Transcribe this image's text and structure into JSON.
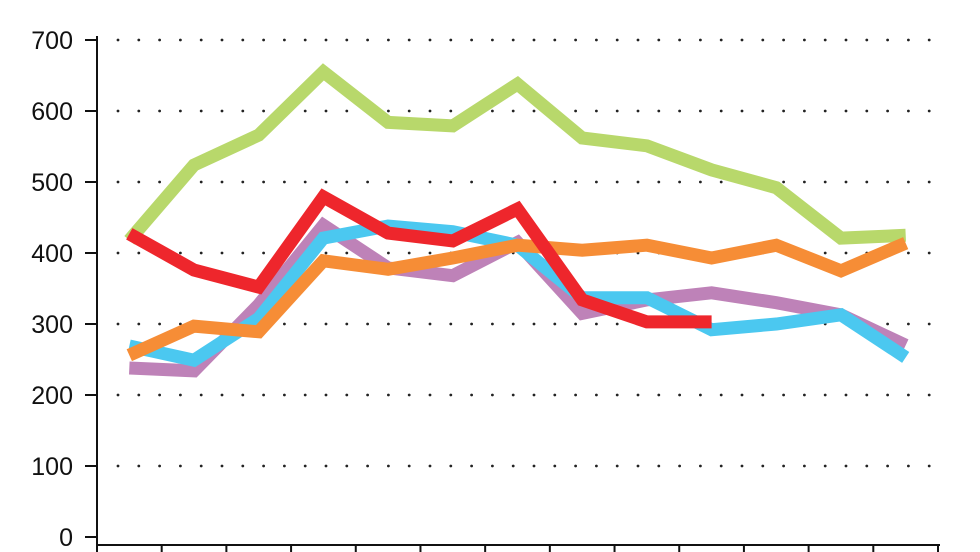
{
  "chart_data": {
    "type": "line",
    "title": "",
    "xlabel": "",
    "ylabel": "",
    "ylim": [
      0,
      700
    ],
    "yticks": [
      "0",
      "100",
      "200",
      "300",
      "400",
      "500",
      "600",
      "700"
    ],
    "x": [
      1,
      2,
      3,
      4,
      5,
      6,
      7,
      8,
      9,
      10,
      11,
      12,
      13
    ],
    "grid": "horizontal dotted",
    "legend": "none",
    "series": [
      {
        "name": "green",
        "color": "#b8d86b",
        "values": [
          418,
          524,
          566,
          655,
          584,
          579,
          638,
          562,
          551,
          517,
          492,
          421,
          425
        ]
      },
      {
        "name": "purple",
        "color": "#be82b8",
        "values": [
          238,
          234,
          327,
          439,
          379,
          368,
          415,
          315,
          334,
          344,
          330,
          313,
          270
        ]
      },
      {
        "name": "blue",
        "color": "#4bc8f0",
        "values": [
          269,
          249,
          308,
          421,
          438,
          430,
          411,
          337,
          337,
          292,
          300,
          313,
          253
        ]
      },
      {
        "name": "orange",
        "color": "#f68d36",
        "values": [
          256,
          297,
          289,
          389,
          377,
          393,
          411,
          404,
          411,
          393,
          411,
          375,
          414
        ]
      },
      {
        "name": "red",
        "color": "#ee262c",
        "values": [
          427,
          376,
          352,
          479,
          428,
          417,
          462,
          334,
          303,
          303,
          null,
          null,
          null
        ]
      }
    ]
  }
}
